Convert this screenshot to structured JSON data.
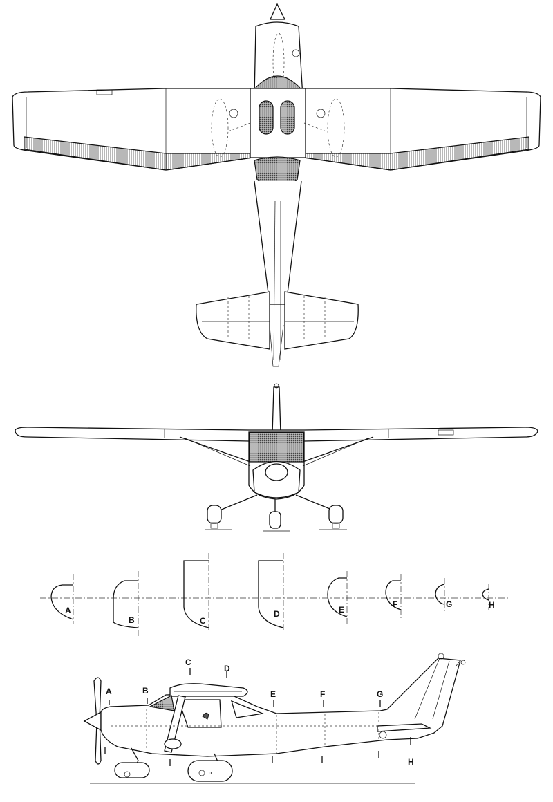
{
  "section_labels": [
    "A",
    "B",
    "C",
    "D",
    "E",
    "F",
    "G",
    "H"
  ],
  "side_labels": [
    "A",
    "B",
    "C",
    "D",
    "E",
    "F",
    "G",
    "H"
  ]
}
